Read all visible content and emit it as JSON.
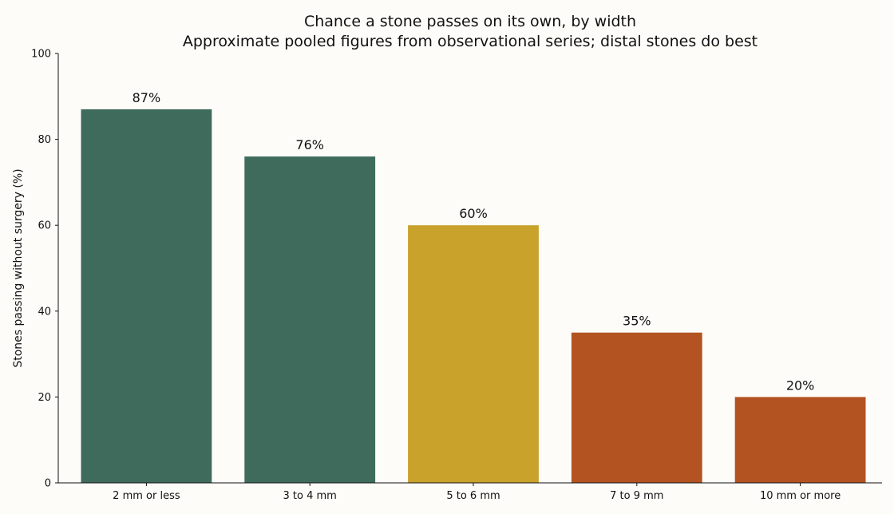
{
  "chart_data": {
    "type": "bar",
    "title": "Chance a stone passes on its own, by width",
    "subtitle": "Approximate pooled figures from observational series; distal stones do best",
    "xlabel": "",
    "ylabel": "Stones passing without surgery (%)",
    "ylim": [
      0,
      100
    ],
    "yticks": [
      0,
      20,
      40,
      60,
      80,
      100
    ],
    "categories": [
      "2 mm or less",
      "3 to 4 mm",
      "5 to 6 mm",
      "7 to 9 mm",
      "10 mm or more"
    ],
    "values": [
      87,
      76,
      60,
      35,
      20
    ],
    "value_labels": [
      "87%",
      "76%",
      "60%",
      "35%",
      "20%"
    ],
    "bar_colors": [
      "#3e6b5c",
      "#3e6b5c",
      "#c9a22b",
      "#b45322",
      "#b45322"
    ],
    "grid": false,
    "legend": "none"
  }
}
